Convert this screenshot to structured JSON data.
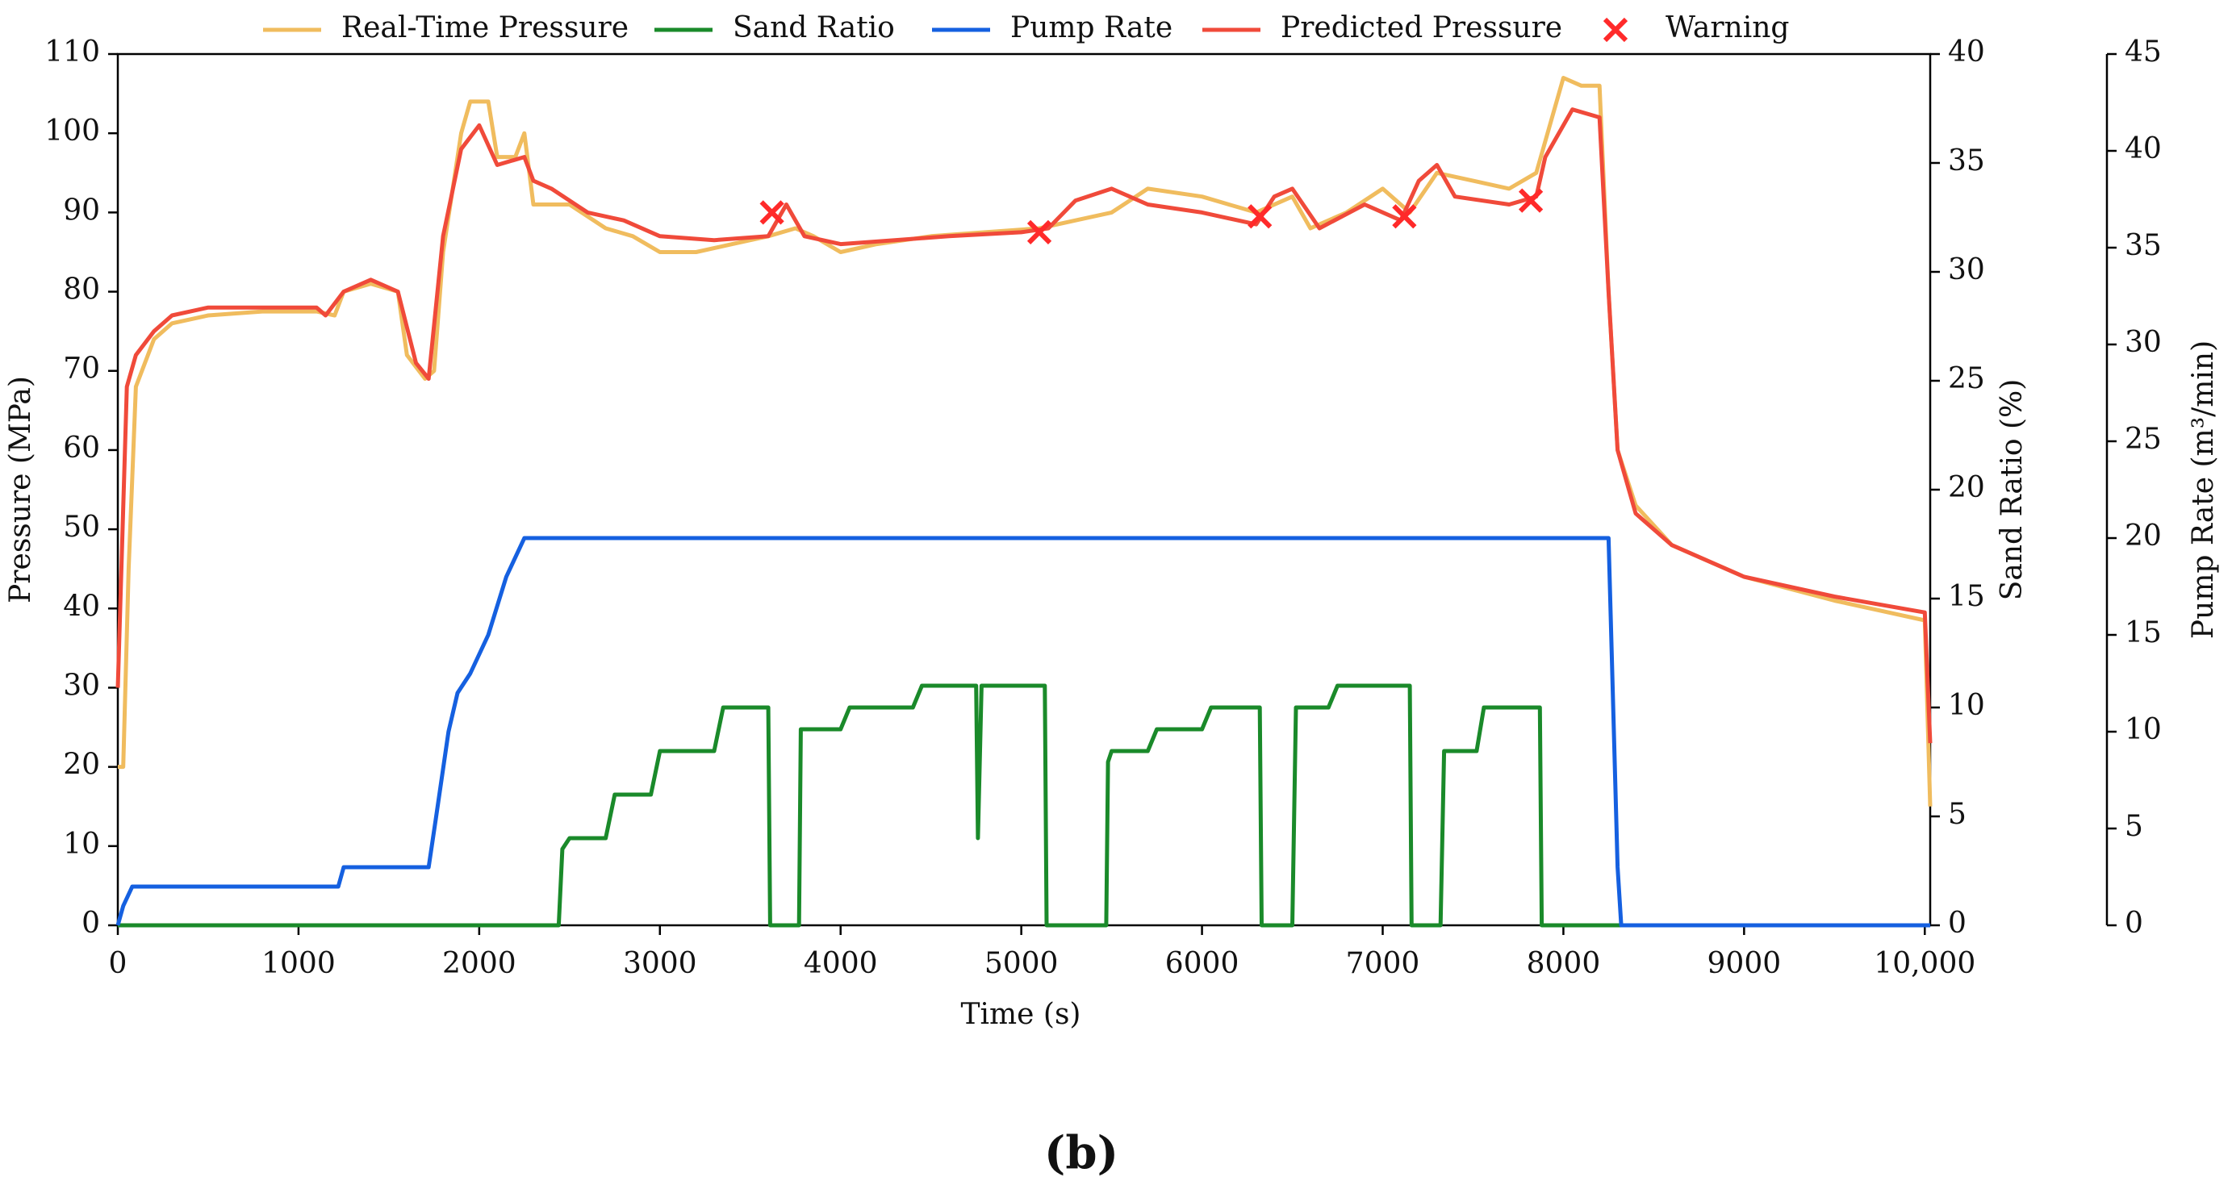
{
  "chart_data": {
    "type": "line",
    "xlabel": "Time (s)",
    "ylabel": "Pressure (MPa)",
    "y2label": "Sand Ratio (%)",
    "y3label": "Pump Rate (m³/min)",
    "caption": "(b)",
    "legend": "top",
    "grid": false,
    "xlim": [
      0,
      10030
    ],
    "xticks": [
      0,
      1000,
      2000,
      3000,
      4000,
      5000,
      6000,
      7000,
      8000,
      9000,
      {
        "value": 10000,
        "label": "10,000"
      }
    ],
    "ylim": [
      0,
      110
    ],
    "yticks": [
      0,
      10,
      20,
      30,
      40,
      50,
      60,
      70,
      80,
      90,
      100,
      110
    ],
    "y2lim": [
      0,
      40
    ],
    "y2ticks": [
      0,
      5,
      10,
      15,
      20,
      25,
      30,
      35,
      40
    ],
    "y3lim": [
      0,
      45
    ],
    "y3ticks": [
      0,
      5,
      10,
      15,
      20,
      25,
      30,
      35,
      40,
      45
    ],
    "series": [
      {
        "name": "Real-Time Pressure",
        "color": "#f0bc5e",
        "x": [
          0,
          30,
          60,
          100,
          200,
          300,
          500,
          800,
          1100,
          1200,
          1250,
          1400,
          1550,
          1600,
          1700,
          1750,
          1800,
          1900,
          1950,
          2050,
          2100,
          2200,
          2250,
          2300,
          2500,
          2700,
          2850,
          3000,
          3200,
          3400,
          3600,
          3750,
          3850,
          4000,
          4200,
          4500,
          4800,
          5100,
          5300,
          5500,
          5700,
          6000,
          6300,
          6500,
          6600,
          6800,
          7000,
          7150,
          7300,
          7500,
          7700,
          7850,
          8000,
          8100,
          8200,
          8250,
          8300,
          8400,
          8600,
          9000,
          9500,
          10000,
          10030
        ],
        "values": [
          20,
          20,
          45,
          68,
          74,
          76,
          77,
          77.5,
          77.5,
          77,
          80,
          81,
          80,
          72,
          69,
          70,
          85,
          100,
          104,
          104,
          97,
          97,
          100,
          91,
          91,
          88,
          87,
          85,
          85,
          86,
          87,
          88,
          87,
          85,
          86,
          87,
          87.5,
          88,
          89,
          90,
          93,
          92,
          90,
          92,
          88,
          90,
          93,
          90,
          95,
          94,
          93,
          95,
          107,
          106,
          106,
          80,
          60,
          53,
          48,
          44,
          41,
          38.5,
          15
        ]
      },
      {
        "name": "Sand Ratio",
        "color": "#1a8a2a",
        "axis": "y2",
        "x": [
          0,
          2440,
          2460,
          2500,
          2700,
          2750,
          2950,
          3000,
          3300,
          3350,
          3600,
          3610,
          3770,
          3780,
          4000,
          4050,
          4400,
          4450,
          4750,
          4760,
          4780,
          5130,
          5140,
          5470,
          5480,
          5500,
          5700,
          5750,
          6000,
          6050,
          6320,
          6330,
          6500,
          6520,
          6700,
          6750,
          7150,
          7160,
          7320,
          7340,
          7520,
          7560,
          7870,
          7880,
          10030
        ],
        "values": [
          0,
          0,
          3.5,
          4,
          4,
          6,
          6,
          8,
          8,
          10,
          10,
          0,
          0,
          9,
          9,
          10,
          10,
          11,
          11,
          4,
          11,
          11,
          0,
          0,
          7.5,
          8,
          8,
          9,
          9,
          10,
          10,
          0,
          0,
          10,
          10,
          11,
          11,
          0,
          0,
          8,
          8,
          10,
          10,
          0,
          0
        ]
      },
      {
        "name": "Pump Rate",
        "color": "#1560e0",
        "axis": "y3",
        "x": [
          0,
          30,
          80,
          1220,
          1250,
          1720,
          1760,
          1830,
          1880,
          1950,
          2050,
          2150,
          2250,
          8250,
          8300,
          8320,
          10030
        ],
        "values": [
          0,
          1,
          2,
          2,
          3,
          3,
          5.5,
          10,
          12,
          13,
          15,
          18,
          20,
          20,
          3,
          0,
          0
        ]
      },
      {
        "name": "Predicted Pressure",
        "color": "#f04a3a",
        "x": [
          0,
          50,
          100,
          200,
          300,
          500,
          800,
          1100,
          1150,
          1250,
          1400,
          1550,
          1650,
          1720,
          1800,
          1900,
          2000,
          2100,
          2250,
          2300,
          2400,
          2600,
          2800,
          3000,
          3300,
          3600,
          3700,
          3800,
          4000,
          4300,
          4600,
          5000,
          5150,
          5300,
          5500,
          5700,
          6000,
          6300,
          6400,
          6500,
          6650,
          6900,
          7100,
          7200,
          7300,
          7400,
          7700,
          7850,
          7900,
          8000,
          8050,
          8200,
          8250,
          8300,
          8400,
          8600,
          9000,
          9500,
          10000,
          10030
        ],
        "values": [
          30,
          68,
          72,
          75,
          77,
          78,
          78,
          78,
          77,
          80,
          81.5,
          80,
          71,
          69,
          87,
          98,
          101,
          96,
          97,
          94,
          93,
          90,
          89,
          87,
          86.5,
          87,
          91,
          87,
          86,
          86.5,
          87,
          87.5,
          88,
          91.5,
          93,
          91,
          90,
          88.5,
          92,
          93,
          88,
          91,
          89,
          94,
          96,
          92,
          91,
          92,
          97,
          101,
          103,
          102,
          80,
          60,
          52,
          48,
          44,
          41.5,
          39.5,
          23
        ]
      },
      {
        "name": "Warning",
        "color": "#ff2a2a",
        "marker": "x",
        "x": [
          3620,
          5100,
          6320,
          7120,
          7820
        ],
        "values": [
          90,
          87.5,
          89.5,
          89.5,
          91.5
        ]
      }
    ]
  }
}
